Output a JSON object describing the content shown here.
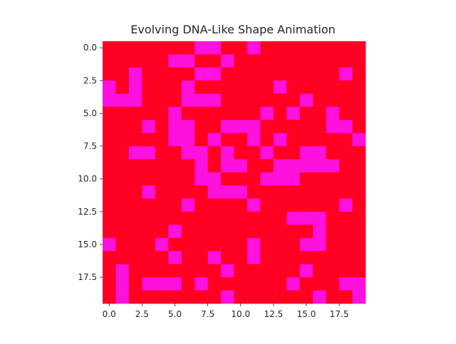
{
  "chart_data": {
    "type": "heatmap",
    "title": "Evolving DNA-Like Shape Animation",
    "xlabel": "",
    "ylabel": "",
    "xlim": [
      -0.5,
      19.5
    ],
    "ylim": [
      19.5,
      -0.5
    ],
    "xticks": [
      "0.0",
      "2.5",
      "5.0",
      "7.5",
      "10.0",
      "12.5",
      "15.0",
      "17.5"
    ],
    "yticks": [
      "0.0",
      "2.5",
      "5.0",
      "7.5",
      "10.0",
      "12.5",
      "15.0",
      "17.5"
    ],
    "grid": false,
    "legend": "none",
    "colors": {
      "0": "#ff0022",
      "1": "#ff11dd"
    },
    "rows": [
      [
        0,
        0,
        0,
        0,
        0,
        0,
        0,
        1,
        1,
        0,
        0,
        1,
        0,
        0,
        0,
        0,
        0,
        0,
        0,
        0
      ],
      [
        0,
        0,
        0,
        0,
        0,
        1,
        1,
        0,
        0,
        1,
        0,
        0,
        0,
        0,
        0,
        0,
        0,
        0,
        0,
        0
      ],
      [
        0,
        0,
        1,
        0,
        0,
        0,
        0,
        1,
        1,
        0,
        0,
        0,
        0,
        0,
        0,
        0,
        0,
        0,
        1,
        0
      ],
      [
        1,
        0,
        1,
        0,
        0,
        0,
        1,
        0,
        0,
        0,
        0,
        0,
        0,
        1,
        0,
        0,
        0,
        0,
        0,
        0
      ],
      [
        1,
        1,
        1,
        0,
        0,
        0,
        1,
        1,
        1,
        0,
        0,
        0,
        0,
        0,
        0,
        1,
        0,
        0,
        0,
        0
      ],
      [
        0,
        0,
        0,
        0,
        0,
        1,
        0,
        0,
        0,
        0,
        0,
        0,
        1,
        0,
        1,
        0,
        0,
        1,
        0,
        0
      ],
      [
        0,
        0,
        0,
        1,
        0,
        1,
        1,
        0,
        0,
        1,
        1,
        1,
        0,
        0,
        0,
        0,
        0,
        1,
        1,
        0
      ],
      [
        0,
        0,
        0,
        0,
        0,
        1,
        1,
        0,
        1,
        0,
        0,
        1,
        0,
        1,
        0,
        0,
        0,
        0,
        0,
        1
      ],
      [
        0,
        0,
        1,
        1,
        0,
        0,
        1,
        1,
        0,
        1,
        0,
        0,
        1,
        0,
        0,
        1,
        1,
        0,
        0,
        0
      ],
      [
        0,
        0,
        0,
        0,
        0,
        0,
        0,
        1,
        0,
        1,
        1,
        0,
        0,
        1,
        1,
        1,
        1,
        1,
        0,
        0
      ],
      [
        0,
        0,
        0,
        0,
        0,
        0,
        0,
        1,
        1,
        0,
        0,
        0,
        1,
        1,
        1,
        0,
        0,
        0,
        0,
        0
      ],
      [
        0,
        0,
        0,
        1,
        0,
        0,
        0,
        0,
        1,
        1,
        1,
        0,
        0,
        0,
        0,
        0,
        0,
        0,
        0,
        0
      ],
      [
        0,
        0,
        0,
        0,
        0,
        0,
        1,
        0,
        0,
        0,
        0,
        1,
        0,
        0,
        0,
        0,
        0,
        0,
        1,
        0
      ],
      [
        0,
        0,
        0,
        0,
        0,
        0,
        0,
        0,
        0,
        0,
        0,
        0,
        0,
        0,
        1,
        1,
        1,
        0,
        0,
        0
      ],
      [
        0,
        0,
        0,
        0,
        0,
        1,
        0,
        0,
        0,
        0,
        0,
        0,
        0,
        0,
        0,
        0,
        1,
        0,
        0,
        0
      ],
      [
        1,
        0,
        0,
        0,
        1,
        0,
        0,
        0,
        0,
        0,
        0,
        1,
        0,
        0,
        0,
        1,
        1,
        0,
        0,
        0
      ],
      [
        0,
        0,
        0,
        0,
        0,
        1,
        0,
        0,
        1,
        0,
        0,
        1,
        0,
        0,
        0,
        0,
        0,
        0,
        0,
        0
      ],
      [
        0,
        1,
        0,
        0,
        0,
        0,
        0,
        0,
        0,
        1,
        0,
        0,
        0,
        0,
        0,
        1,
        0,
        0,
        0,
        0
      ],
      [
        0,
        1,
        0,
        1,
        1,
        1,
        0,
        1,
        0,
        0,
        0,
        0,
        0,
        0,
        1,
        0,
        0,
        0,
        1,
        1
      ],
      [
        0,
        1,
        0,
        0,
        0,
        0,
        0,
        0,
        0,
        1,
        0,
        0,
        0,
        0,
        0,
        0,
        1,
        0,
        0,
        1
      ]
    ]
  }
}
